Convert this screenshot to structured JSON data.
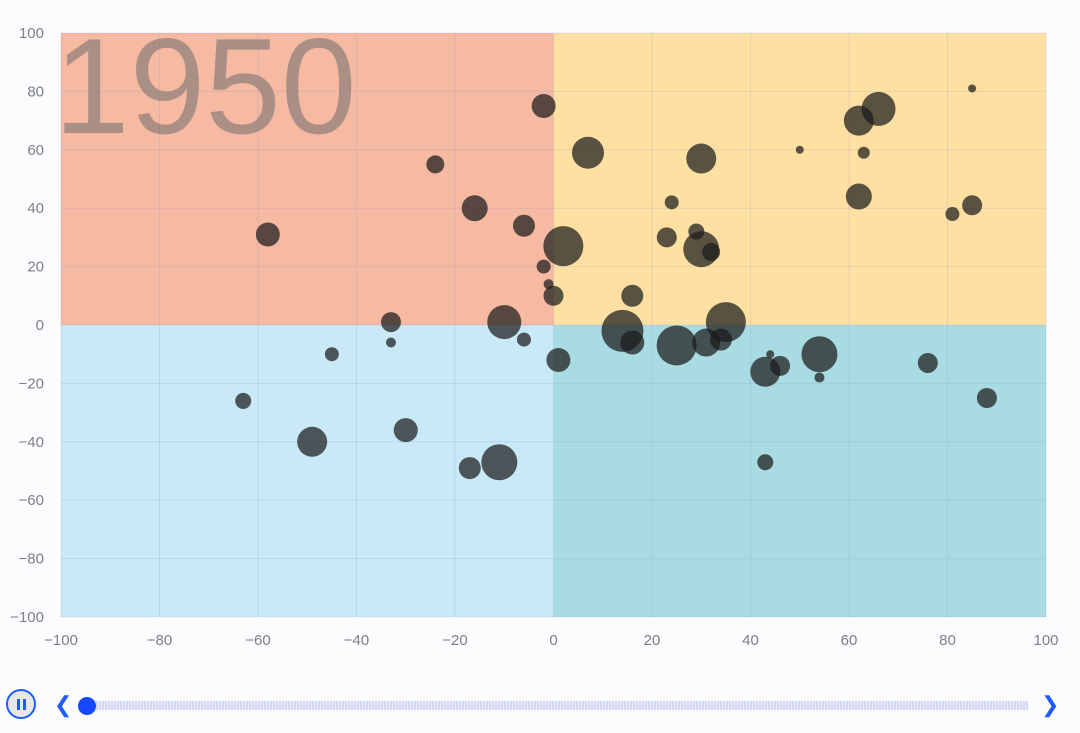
{
  "chart_data": {
    "type": "scatter",
    "subtype": "bubble",
    "title": "",
    "xlabel": "",
    "ylabel": "",
    "xlim": [
      -100,
      100
    ],
    "ylim": [
      -100,
      100
    ],
    "xticks": [
      -100,
      -80,
      -60,
      -40,
      -20,
      0,
      20,
      40,
      60,
      80,
      100
    ],
    "yticks": [
      -100,
      -80,
      -60,
      -40,
      -20,
      0,
      20,
      40,
      60,
      80,
      100
    ],
    "grid": true,
    "quadrant_colors": {
      "top_left": "#f6b9a2",
      "top_right": "#fde0a2",
      "bottom_left": "#c9e9f6",
      "bottom_right": "#a9dbe3"
    },
    "bubble_color": "#1a1a1a",
    "year_label": "1950",
    "points": [
      {
        "x": -2,
        "y": 75,
        "size": 12
      },
      {
        "x": 7,
        "y": 59,
        "size": 16
      },
      {
        "x": 30,
        "y": 57,
        "size": 15
      },
      {
        "x": 66,
        "y": 74,
        "size": 17
      },
      {
        "x": 62,
        "y": 70,
        "size": 15
      },
      {
        "x": 85,
        "y": 81,
        "size": 4
      },
      {
        "x": 50,
        "y": 60,
        "size": 4
      },
      {
        "x": 63,
        "y": 59,
        "size": 6
      },
      {
        "x": -24,
        "y": 55,
        "size": 9
      },
      {
        "x": -16,
        "y": 40,
        "size": 13
      },
      {
        "x": -58,
        "y": 31,
        "size": 12
      },
      {
        "x": -6,
        "y": 34,
        "size": 11
      },
      {
        "x": 2,
        "y": 27,
        "size": 20
      },
      {
        "x": 24,
        "y": 42,
        "size": 7
      },
      {
        "x": 62,
        "y": 44,
        "size": 13
      },
      {
        "x": 81,
        "y": 38,
        "size": 7
      },
      {
        "x": 85,
        "y": 41,
        "size": 10
      },
      {
        "x": 23,
        "y": 30,
        "size": 10
      },
      {
        "x": 29,
        "y": 32,
        "size": 8
      },
      {
        "x": 30,
        "y": 26,
        "size": 18
      },
      {
        "x": 32,
        "y": 25,
        "size": 9
      },
      {
        "x": -2,
        "y": 20,
        "size": 7
      },
      {
        "x": -1,
        "y": 14,
        "size": 5
      },
      {
        "x": 0,
        "y": 10,
        "size": 10
      },
      {
        "x": 16,
        "y": 10,
        "size": 11
      },
      {
        "x": -33,
        "y": 1,
        "size": 10
      },
      {
        "x": -10,
        "y": 1,
        "size": 17
      },
      {
        "x": 14,
        "y": -2,
        "size": 21
      },
      {
        "x": 16,
        "y": -6,
        "size": 12
      },
      {
        "x": 25,
        "y": -7,
        "size": 20
      },
      {
        "x": 31,
        "y": -6,
        "size": 14
      },
      {
        "x": 35,
        "y": 1,
        "size": 20
      },
      {
        "x": 34,
        "y": -5,
        "size": 11
      },
      {
        "x": -33,
        "y": -6,
        "size": 5
      },
      {
        "x": -45,
        "y": -10,
        "size": 7
      },
      {
        "x": -6,
        "y": -5,
        "size": 7
      },
      {
        "x": 1,
        "y": -12,
        "size": 12
      },
      {
        "x": 54,
        "y": -10,
        "size": 18
      },
      {
        "x": 43,
        "y": -16,
        "size": 15
      },
      {
        "x": 46,
        "y": -14,
        "size": 10
      },
      {
        "x": 44,
        "y": -10,
        "size": 4
      },
      {
        "x": 54,
        "y": -18,
        "size": 5
      },
      {
        "x": 76,
        "y": -13,
        "size": 10
      },
      {
        "x": -63,
        "y": -26,
        "size": 8
      },
      {
        "x": 88,
        "y": -25,
        "size": 10
      },
      {
        "x": -30,
        "y": -36,
        "size": 12
      },
      {
        "x": -49,
        "y": -40,
        "size": 15
      },
      {
        "x": -17,
        "y": -49,
        "size": 11
      },
      {
        "x": -11,
        "y": -47,
        "size": 18
      },
      {
        "x": 43,
        "y": -47,
        "size": 8
      }
    ]
  },
  "timeline": {
    "playing": true,
    "progress": 0,
    "accent_color": "#1f5cff",
    "icons": {
      "play": "pause-icon",
      "prev": "chevron-left-icon",
      "next": "chevron-right-icon"
    }
  }
}
